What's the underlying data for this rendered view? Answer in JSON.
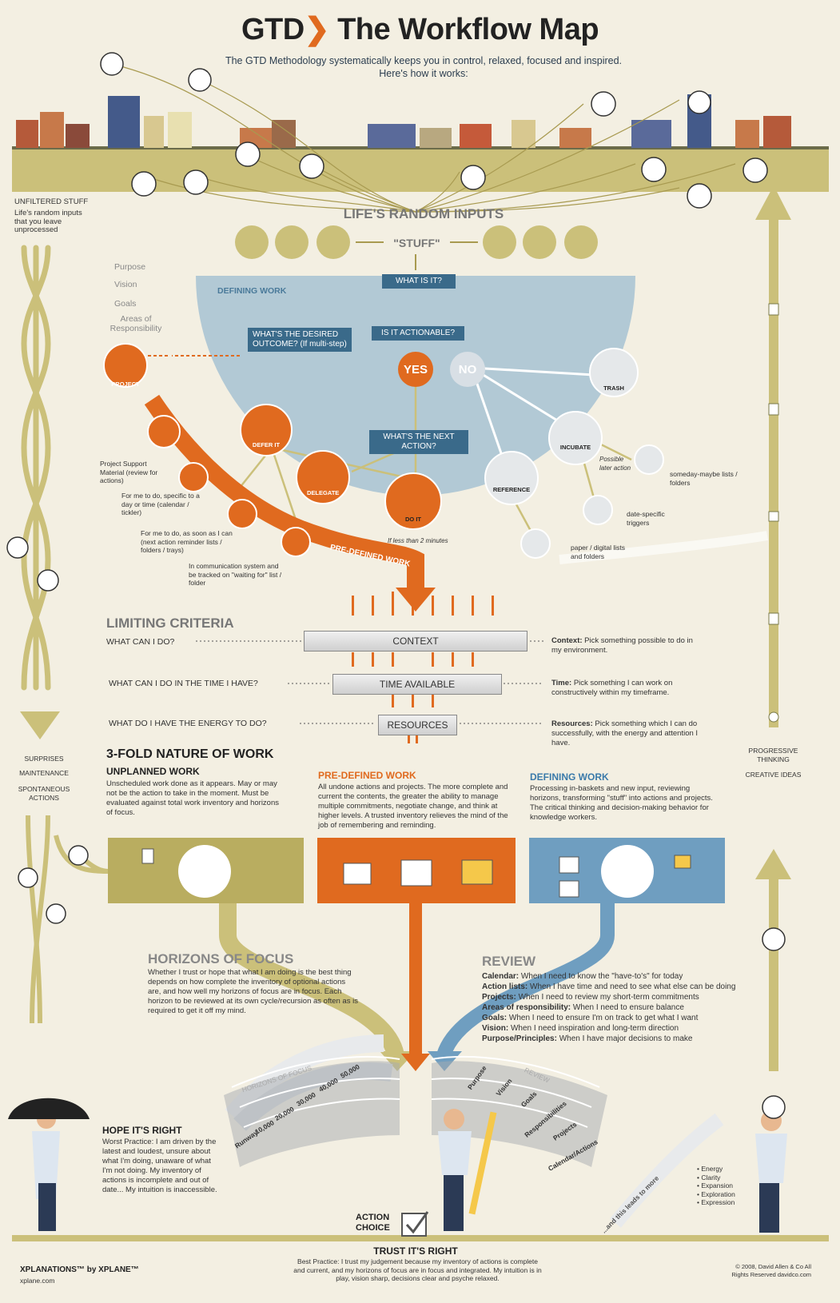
{
  "header": {
    "title_prefix": "GTD",
    "title_suffix": "The Workflow Map",
    "subtitle": "The GTD Methodology systematically keeps you in control, relaxed, focused and inspired. Here's how it works:"
  },
  "inputs": {
    "heading": "LIFE'S RANDOM INPUTS",
    "stuff": "\"STUFF\""
  },
  "left_rail": {
    "top_title": "UNFILTERED STUFF",
    "top_desc": "Life's random inputs that you leave unprocessed",
    "mid_items": [
      "SURPRISES",
      "MAINTENANCE",
      "SPONTANEOUS ACTIONS"
    ]
  },
  "right_rail": {
    "items": [
      "PROGRESSIVE THINKING",
      "CREATIVE IDEAS"
    ]
  },
  "horizons_list": [
    "Purpose",
    "Vision",
    "Goals",
    "Areas of Responsibility"
  ],
  "defining": {
    "label": "DEFINING WORK",
    "what_is_it": "WHAT IS IT?",
    "actionable": "IS IT ACTIONABLE?",
    "yes": "YES",
    "no": "NO",
    "desired_outcome": "WHAT'S THE DESIRED OUTCOME? (If multi-step)",
    "next_action": "WHAT'S THE NEXT ACTION?",
    "project": "PROJECT",
    "defer": "DEFER IT",
    "delegate": "DELEGATE",
    "do_it": "DO IT",
    "do_it_note": "If less than 2 minutes",
    "trash": "TRASH",
    "incubate": "INCUBATE",
    "incubate_note": "Possible later action",
    "reference": "REFERENCE",
    "someday": "someday-maybe lists / folders",
    "date_triggers": "date-specific triggers",
    "paper_lists": "paper / digital lists and folders",
    "support_material": "Project Support Material (review for actions)",
    "calendar_note": "For me to do, specific to a day or time (calendar / tickler)",
    "asap_note": "For me to do, as soon as I can (next action reminder lists / folders / trays)",
    "waiting_note": "In communication system and be tracked on \"waiting for\" list / folder",
    "predefined_banner": "PRE-DEFINED WORK"
  },
  "limiting": {
    "heading": "LIMITING CRITERIA",
    "rows": [
      {
        "q": "WHAT CAN I DO?",
        "bar": "CONTEXT",
        "term": "Context:",
        "desc": "Pick something possible to do in my environment."
      },
      {
        "q": "WHAT CAN I DO IN THE TIME I HAVE?",
        "bar": "TIME AVAILABLE",
        "term": "Time:",
        "desc": "Pick something I can work on constructively within my timeframe."
      },
      {
        "q": "WHAT DO I HAVE THE ENERGY TO DO?",
        "bar": "RESOURCES",
        "term": "Resources:",
        "desc": "Pick something which I can do successfully, with the energy and attention I have."
      }
    ]
  },
  "threefold": {
    "heading": "3-FOLD NATURE OF WORK",
    "columns": [
      {
        "title": "UNPLANNED WORK",
        "desc": "Unscheduled work done as it appears. May or may not be the action to take in the moment. Must be evaluated against total work inventory and horizons of focus."
      },
      {
        "title": "PRE-DEFINED WORK",
        "desc": "All undone actions and projects. The more complete and current the contents, the greater the ability to manage multiple commitments, negotiate change, and think at higher levels. A trusted inventory relieves the mind of the job of remembering and reminding."
      },
      {
        "title": "DEFINING WORK",
        "desc": "Processing in-baskets and new input, reviewing horizons, transforming \"stuff\" into actions and projects. The critical thinking and decision-making behavior for knowledge workers."
      }
    ]
  },
  "horizons": {
    "heading": "HORIZONS OF FOCUS",
    "desc": "Whether I trust or hope that what I am doing is the best thing depends on how complete the inventory of optional actions are, and how well my horizons of focus are in focus. Each horizon to be reviewed at its own cycle/recursion as often as is required to get it off my mind.",
    "arc_label": "HORIZONS OF FOCUS",
    "levels": [
      "50,000",
      "40,000",
      "30,000",
      "20,000",
      "10,000",
      "Runway"
    ]
  },
  "review": {
    "heading": "REVIEW",
    "rows": [
      {
        "term": "Calendar:",
        "desc": "When I need to know the \"have-to's\" for today"
      },
      {
        "term": "Action lists:",
        "desc": "When I have time and need to see what else can be doing"
      },
      {
        "term": "Projects:",
        "desc": "When I need to review my short-term commitments"
      },
      {
        "term": "Areas of responsibility:",
        "desc": "When I need to ensure balance"
      },
      {
        "term": "Goals:",
        "desc": "When I need to ensure I'm on track to get what I want"
      },
      {
        "term": "Vision:",
        "desc": "When I need inspiration and long-term direction"
      },
      {
        "term": "Purpose/Principles:",
        "desc": "When I have major decisions to make"
      }
    ],
    "arc_label": "REVIEW",
    "levels": [
      "Purpose",
      "Vision",
      "Goals",
      "Responsibilities",
      "Projects",
      "Calendar/Actions"
    ]
  },
  "hope": {
    "heading": "HOPE IT'S RIGHT",
    "desc": "Worst Practice: I am driven by the latest and loudest, unsure about what I'm doing, unaware of what I'm not doing. My inventory of actions is incomplete and out of date... My intuition is inaccessible."
  },
  "action_choice": "ACTION CHOICE",
  "trust": {
    "heading": "TRUST IT'S RIGHT",
    "desc": "Best Practice: I trust my judgement because my inventory of actions is complete and current, and my horizons of focus are in focus and integrated. My intuition is in play, vision sharp, decisions clear and psyche relaxed."
  },
  "leads_to": "...and this leads to more",
  "benefits": [
    "Energy",
    "Clarity",
    "Expansion",
    "Exploration",
    "Expression"
  ],
  "footer": {
    "brand": "XPLANATIONS™ by XPLANE™",
    "brand_url": "xplane.com",
    "copyright": "© 2008, David Allen & Co All Rights Reserved davidco.com"
  },
  "colors": {
    "orange": "#e06a1f",
    "olive": "#b9ad60",
    "blue": "#6f9ec0",
    "navy": "#3a6a8a"
  }
}
